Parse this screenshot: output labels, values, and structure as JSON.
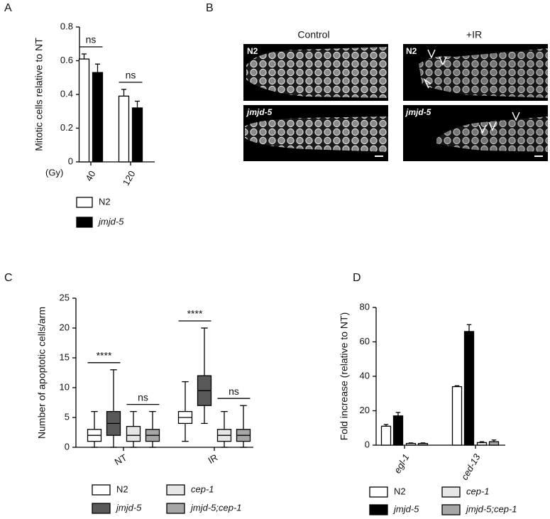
{
  "panel_labels": [
    "A",
    "B",
    "C",
    "D"
  ],
  "micrographs": {
    "columns": [
      "Control",
      "+IR"
    ],
    "rows": [
      "N2",
      "jmjd-5"
    ]
  },
  "chart_data": [
    {
      "type": "bar",
      "ylabel": "Mitotic cells  relative to NT",
      "xlabel": "(Gy)",
      "categories": [
        "40",
        "120"
      ],
      "series": [
        {
          "name": "N2",
          "color": "#ffffff",
          "values": [
            0.61,
            0.39
          ],
          "errors": [
            0.03,
            0.04
          ]
        },
        {
          "name": "jmjd-5",
          "color": "#000000",
          "italic": true,
          "values": [
            0.53,
            0.32
          ],
          "errors": [
            0.05,
            0.04
          ]
        }
      ],
      "annotations": [
        "ns",
        "ns"
      ],
      "ylim": [
        0,
        0.8
      ],
      "yticks": [
        0,
        0.2,
        0.4,
        0.6,
        0.8
      ]
    },
    {
      "type": "box",
      "ylabel": "Number of apoptotic cells/arm",
      "categories": [
        "NT",
        "IR"
      ],
      "series": [
        {
          "name": "N2",
          "color": "#ffffff",
          "boxes": [
            {
              "min": 0,
              "q1": 1,
              "median": 2,
              "q3": 3,
              "max": 6
            },
            {
              "min": 1,
              "q1": 4,
              "median": 5,
              "q3": 6,
              "max": 11
            }
          ]
        },
        {
          "name": "jmjd-5",
          "color": "#595959",
          "italic": true,
          "boxes": [
            {
              "min": 0,
              "q1": 2,
              "median": 4,
              "q3": 6,
              "max": 13
            },
            {
              "min": 4,
              "q1": 7,
              "median": 9.5,
              "q3": 12,
              "max": 20
            }
          ]
        },
        {
          "name": "cep-1",
          "color": "#e6e6e6",
          "italic": true,
          "boxes": [
            {
              "min": 0,
              "q1": 1,
              "median": 2,
              "q3": 3.5,
              "max": 6
            },
            {
              "min": 0,
              "q1": 1,
              "median": 2,
              "q3": 3,
              "max": 6
            }
          ]
        },
        {
          "name": "jmjd-5;cep-1",
          "color": "#a6a6a6",
          "italic": true,
          "boxes": [
            {
              "min": 0,
              "q1": 1,
              "median": 2,
              "q3": 3,
              "max": 6
            },
            {
              "min": 0,
              "q1": 1,
              "median": 2,
              "q3": 3,
              "max": 7
            }
          ]
        }
      ],
      "annotations": [
        [
          "****",
          "ns"
        ],
        [
          "****",
          "ns"
        ]
      ],
      "ylim": [
        0,
        25
      ],
      "yticks": [
        0,
        5,
        10,
        15,
        20,
        25
      ]
    },
    {
      "type": "bar",
      "ylabel": "Fold increase (relative to NT)",
      "categories": [
        "egl-1",
        "ced-13"
      ],
      "italic_categories": true,
      "series": [
        {
          "name": "N2",
          "color": "#ffffff",
          "values": [
            11,
            34
          ],
          "errors": [
            1,
            0.5
          ]
        },
        {
          "name": "jmjd-5",
          "color": "#000000",
          "italic": true,
          "values": [
            17,
            66
          ],
          "errors": [
            2,
            4
          ]
        },
        {
          "name": "cep-1",
          "color": "#e6e6e6",
          "italic": true,
          "values": [
            1,
            1.5
          ],
          "errors": [
            0.3,
            0.5
          ]
        },
        {
          "name": "jmjd-5;cep-1",
          "color": "#a6a6a6",
          "italic": true,
          "values": [
            1,
            2
          ],
          "errors": [
            0.3,
            1
          ]
        }
      ],
      "ylim": [
        0,
        80
      ],
      "yticks": [
        0,
        20,
        40,
        60,
        80
      ]
    }
  ]
}
